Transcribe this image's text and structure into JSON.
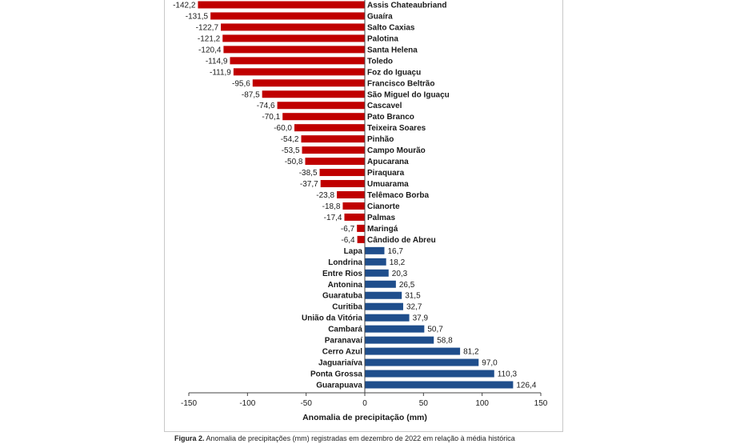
{
  "chart_data": {
    "type": "bar",
    "orientation": "horizontal",
    "xlabel": "Anomalia de precipitação (mm)",
    "xlim": [
      -150,
      150
    ],
    "xticks": [
      -150,
      -100,
      -50,
      0,
      50,
      100,
      150
    ],
    "grid": false,
    "legend": "none",
    "colors": {
      "negative": "#c00000",
      "positive": "#1f4e8c"
    },
    "categories": [
      "Assis Chateaubriand",
      "Guaíra",
      "Salto Caxias",
      "Palotina",
      "Santa Helena",
      "Toledo",
      "Foz do Iguaçu",
      "Francisco Beltrão",
      "São Miguel do Iguaçu",
      "Cascavel",
      "Pato Branco",
      "Teixeira Soares",
      "Pinhão",
      "Campo Mourão",
      "Apucarana",
      "Piraquara",
      "Umuarama",
      "Telêmaco Borba",
      "Cianorte",
      "Palmas",
      "Maringá",
      "Cândido de Abreu",
      "Lapa",
      "Londrina",
      "Entre Rios",
      "Antonina",
      "Guaratuba",
      "Curitiba",
      "União da Vitória",
      "Cambará",
      "Paranavaí",
      "Cerro Azul",
      "Jaguariaíva",
      "Ponta Grossa",
      "Guarapuava"
    ],
    "values": [
      -142.2,
      -131.5,
      -122.7,
      -121.2,
      -120.4,
      -114.9,
      -111.9,
      -95.6,
      -87.5,
      -74.6,
      -70.1,
      -60.0,
      -54.2,
      -53.5,
      -50.8,
      -38.5,
      -37.7,
      -23.8,
      -18.8,
      -17.4,
      -6.7,
      -6.4,
      16.7,
      18.2,
      20.3,
      26.5,
      31.5,
      32.7,
      37.9,
      50.7,
      58.8,
      81.2,
      97.0,
      110.3,
      126.4
    ],
    "value_labels": [
      "-142,2",
      "-131,5",
      "-122,7",
      "-121,2",
      "-120,4",
      "-114,9",
      "-111,9",
      "-95,6",
      "-87,5",
      "-74,6",
      "-70,1",
      "-60,0",
      "-54,2",
      "-53,5",
      "-50,8",
      "-38,5",
      "-37,7",
      "-23,8",
      "-18,8",
      "-17,4",
      "-6,7",
      "-6,4",
      "16,7",
      "18,2",
      "20,3",
      "26,5",
      "31,5",
      "32,7",
      "37,9",
      "50,7",
      "58,8",
      "81,2",
      "97,0",
      "110,3",
      "126,4"
    ]
  },
  "caption": {
    "label": "Figura 2.",
    "text": " Anomalia de precipitações (mm) registradas em dezembro de 2022 em relação à média histórica"
  }
}
